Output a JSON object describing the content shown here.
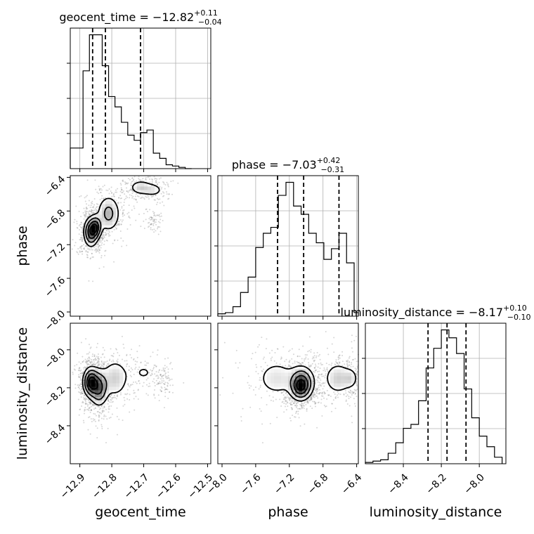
{
  "chart_data": {
    "type": "corner",
    "parameters": [
      "geocent_time",
      "phase",
      "luminosity_distance"
    ],
    "axis_labels": {
      "x": [
        "geocent_time",
        "phase",
        "luminosity_distance"
      ],
      "y": [
        "",
        "phase",
        "luminosity_distance"
      ]
    },
    "ranges": {
      "geocent_time": [
        -12.93,
        -12.49
      ],
      "phase": [
        -8.05,
        -6.38
      ],
      "luminosity_distance": [
        -8.6,
        -7.86
      ]
    },
    "ticks": {
      "geocent_time": [
        -12.9,
        -12.8,
        -12.7,
        -12.6,
        -12.5
      ],
      "phase": [
        -8.0,
        -7.6,
        -7.2,
        -6.8,
        -6.4
      ],
      "luminosity_distance": [
        -8.4,
        -8.2,
        -8.0
      ]
    },
    "tick_labels": {
      "geocent_time": [
        "−12.9",
        "−12.8",
        "−12.7",
        "−12.6",
        "−12.5"
      ],
      "phase": [
        "−8.0",
        "−7.6",
        "−7.2",
        "−6.8",
        "−6.4"
      ],
      "luminosity_distance": [
        "−8.4",
        "−8.2",
        "−8.0"
      ]
    },
    "titles": [
      {
        "param": "geocent_time",
        "prefix": "geocent_time = −12.82",
        "sup": "+0.11",
        "sub": "−0.04"
      },
      {
        "param": "phase",
        "prefix": "phase = −7.03",
        "sup": "+0.42",
        "sub": "−0.31"
      },
      {
        "param": "luminosity_distance",
        "prefix": "luminosity_distance = −8.17",
        "sup": "+0.10",
        "sub": "−0.10"
      }
    ],
    "quantiles": {
      "geocent_time": [
        -12.86,
        -12.82,
        -12.71
      ],
      "phase": [
        -7.34,
        -7.03,
        -6.61
      ],
      "luminosity_distance": [
        -8.27,
        -8.17,
        -8.07
      ]
    },
    "histograms": {
      "geocent_time": {
        "edges": [
          -12.93,
          -12.91,
          -12.89,
          -12.87,
          -12.85,
          -12.83,
          -12.81,
          -12.79,
          -12.77,
          -12.75,
          -12.73,
          -12.71,
          -12.69,
          -12.67,
          -12.65,
          -12.63,
          -12.61,
          -12.59,
          -12.57,
          -12.55
        ],
        "counts": [
          8,
          8,
          38,
          52,
          52,
          40,
          28,
          24,
          18,
          13,
          11,
          14,
          15,
          6,
          4,
          1.5,
          1,
          0.5,
          0
        ]
      },
      "phase": {
        "edges": [
          -8.05,
          -7.96,
          -7.87,
          -7.78,
          -7.69,
          -7.6,
          -7.51,
          -7.42,
          -7.33,
          -7.24,
          -7.15,
          -7.06,
          -6.97,
          -6.88,
          -6.79,
          -6.7,
          -6.61,
          -6.52,
          -6.43,
          -6.38
        ],
        "counts": [
          2,
          3,
          8,
          20,
          33,
          58,
          70,
          75,
          102,
          113,
          93,
          86,
          70,
          62,
          48,
          57,
          70,
          45,
          3
        ]
      },
      "luminosity_distance": {
        "edges": [
          -8.6,
          -8.56,
          -8.52,
          -8.48,
          -8.44,
          -8.4,
          -8.36,
          -8.32,
          -8.28,
          -8.24,
          -8.2,
          -8.16,
          -8.12,
          -8.08,
          -8.04,
          -8.0,
          -7.96,
          -7.92,
          -7.88
        ],
        "counts": [
          1,
          2,
          3,
          8,
          16,
          27,
          30,
          48,
          73,
          88,
          102,
          96,
          84,
          57,
          35,
          21,
          13,
          5
        ]
      }
    },
    "density_2d": [
      {
        "x": "geocent_time",
        "y": "phase",
        "modes": [
          {
            "x": -12.865,
            "y": -7.05,
            "w": 1.0,
            "sx": 0.012,
            "sy": 0.09
          },
          {
            "x": -12.85,
            "y": -6.99,
            "w": 0.85,
            "sx": 0.01,
            "sy": 0.07
          },
          {
            "x": -12.81,
            "y": -6.83,
            "w": 0.5,
            "sx": 0.02,
            "sy": 0.12
          },
          {
            "x": -12.71,
            "y": -6.52,
            "w": 0.35,
            "sx": 0.02,
            "sy": 0.05
          },
          {
            "x": -12.67,
            "y": -6.55,
            "w": 0.25,
            "sx": 0.02,
            "sy": 0.05
          },
          {
            "x": -12.67,
            "y": -6.92,
            "w": 0.15,
            "sx": 0.01,
            "sy": 0.04
          }
        ]
      },
      {
        "x": "geocent_time",
        "y": "luminosity_distance",
        "modes": [
          {
            "x": -12.865,
            "y": -8.17,
            "w": 1.0,
            "sx": 0.013,
            "sy": 0.04
          },
          {
            "x": -12.84,
            "y": -8.2,
            "w": 0.7,
            "sx": 0.015,
            "sy": 0.05
          },
          {
            "x": -12.79,
            "y": -8.15,
            "w": 0.3,
            "sx": 0.025,
            "sy": 0.06
          },
          {
            "x": -12.7,
            "y": -8.12,
            "w": 0.15,
            "sx": 0.03,
            "sy": 0.04
          },
          {
            "x": -12.64,
            "y": -8.17,
            "w": 0.12,
            "sx": 0.01,
            "sy": 0.03
          }
        ]
      },
      {
        "x": "phase",
        "y": "luminosity_distance",
        "modes": [
          {
            "x": -7.05,
            "y": -8.17,
            "w": 1.0,
            "sx": 0.08,
            "sy": 0.045
          },
          {
            "x": -7.07,
            "y": -8.2,
            "w": 0.8,
            "sx": 0.06,
            "sy": 0.035
          },
          {
            "x": -7.35,
            "y": -8.15,
            "w": 0.35,
            "sx": 0.15,
            "sy": 0.06
          },
          {
            "x": -6.62,
            "y": -8.15,
            "w": 0.45,
            "sx": 0.1,
            "sy": 0.05
          },
          {
            "x": -6.47,
            "y": -8.15,
            "w": 0.3,
            "sx": 0.05,
            "sy": 0.03
          }
        ]
      }
    ],
    "grid": true
  }
}
